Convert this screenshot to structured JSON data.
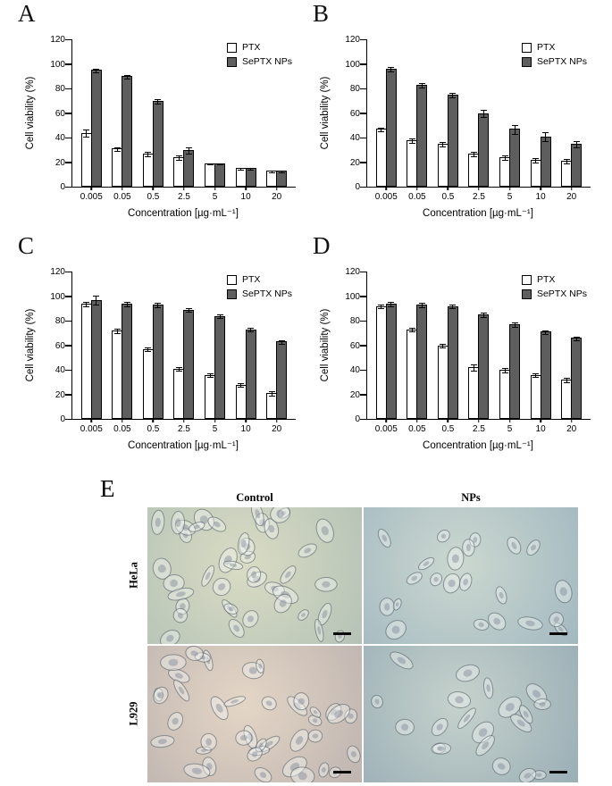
{
  "chart_data": [
    {
      "id": "A",
      "panel": "A",
      "type": "bar",
      "title": "",
      "categories": [
        "0.005",
        "0.05",
        "0.5",
        "2.5",
        "5",
        "10",
        "20"
      ],
      "series": [
        {
          "name": "PTX",
          "color": "#ffffff",
          "values": [
            44,
            31,
            27,
            24,
            19,
            15,
            13
          ],
          "errors": [
            3,
            2,
            2,
            2,
            1,
            1,
            1
          ]
        },
        {
          "name": "SePTX NPs",
          "color": "#5e5e5e",
          "values": [
            95,
            90,
            70,
            30,
            19,
            15,
            13
          ],
          "errors": [
            2,
            2,
            2,
            3,
            1,
            1,
            1
          ]
        }
      ],
      "ylabel": "Cell viability (%)",
      "xlabel": "Concentration [µg·mL⁻¹]",
      "ylim": [
        0,
        120
      ],
      "yticks": [
        0,
        20,
        40,
        60,
        80,
        100,
        120
      ],
      "legend_position": "top-right",
      "grid": false
    },
    {
      "id": "B",
      "panel": "B",
      "type": "bar",
      "title": "",
      "categories": [
        "0.005",
        "0.05",
        "0.5",
        "2.5",
        "5",
        "10",
        "20"
      ],
      "series": [
        {
          "name": "PTX",
          "color": "#ffffff",
          "values": [
            47,
            38,
            35,
            27,
            24,
            22,
            21
          ],
          "errors": [
            2,
            2,
            2,
            2,
            2,
            2,
            2
          ]
        },
        {
          "name": "SePTX NPs",
          "color": "#5e5e5e",
          "values": [
            96,
            83,
            75,
            60,
            47,
            41,
            35
          ],
          "errors": [
            2,
            2,
            2,
            3,
            4,
            4,
            3
          ]
        }
      ],
      "ylabel": "Cell viability (%)",
      "xlabel": "Concentration [µg·mL⁻¹]",
      "ylim": [
        0,
        120
      ],
      "yticks": [
        0,
        20,
        40,
        60,
        80,
        100,
        120
      ],
      "legend_position": "top-right",
      "grid": false
    },
    {
      "id": "C",
      "panel": "C",
      "type": "bar",
      "title": "",
      "categories": [
        "0.005",
        "0.05",
        "0.5",
        "2.5",
        "5",
        "10",
        "20"
      ],
      "series": [
        {
          "name": "PTX",
          "color": "#ffffff",
          "values": [
            94,
            72,
            57,
            41,
            36,
            28,
            21
          ],
          "errors": [
            2,
            2,
            2,
            2,
            2,
            2,
            2
          ]
        },
        {
          "name": "SePTX NPs",
          "color": "#5e5e5e",
          "values": [
            97,
            94,
            93,
            89,
            84,
            73,
            63
          ],
          "errors": [
            4,
            2,
            2,
            2,
            2,
            2,
            2
          ]
        }
      ],
      "ylabel": "Cell viability (%)",
      "xlabel": "Concentration [µg·mL⁻¹]",
      "ylim": [
        0,
        120
      ],
      "yticks": [
        0,
        20,
        40,
        60,
        80,
        100,
        120
      ],
      "legend_position": "top-right",
      "grid": false
    },
    {
      "id": "D",
      "panel": "D",
      "type": "bar",
      "title": "",
      "categories": [
        "0.005",
        "0.05",
        "0.5",
        "2.5",
        "5",
        "10",
        "20"
      ],
      "series": [
        {
          "name": "PTX",
          "color": "#ffffff",
          "values": [
            92,
            73,
            60,
            42,
            40,
            36,
            32
          ],
          "errors": [
            2,
            2,
            2,
            3,
            2,
            2,
            2
          ]
        },
        {
          "name": "SePTX NPs",
          "color": "#5e5e5e",
          "values": [
            94,
            93,
            92,
            85,
            77,
            71,
            66
          ],
          "errors": [
            2,
            2,
            2,
            2,
            2,
            2,
            2
          ]
        }
      ],
      "ylabel": "Cell viability (%)",
      "xlabel": "Concentration [µg·mL⁻¹]",
      "ylim": [
        0,
        120
      ],
      "yticks": [
        0,
        20,
        40,
        60,
        80,
        100,
        120
      ],
      "legend_position": "top-right",
      "grid": false
    }
  ],
  "panel_e": {
    "label": "E",
    "columns": [
      "Control",
      "NPs"
    ],
    "rows": [
      "HeLa",
      "L929"
    ],
    "images": [
      {
        "row": "HeLa",
        "col": "Control",
        "cells": 42,
        "palette": [
          "#dadcc4",
          "#b4c2b6"
        ]
      },
      {
        "row": "HeLa",
        "col": "NPs",
        "cells": 22,
        "palette": [
          "#ccd8d0",
          "#a2b8c0"
        ]
      },
      {
        "row": "L929",
        "col": "Control",
        "cells": 40,
        "palette": [
          "#e4d6c6",
          "#beb4b0"
        ]
      },
      {
        "row": "L929",
        "col": "NPs",
        "cells": 20,
        "palette": [
          "#c6d2cc",
          "#9aaeb6"
        ]
      }
    ]
  }
}
